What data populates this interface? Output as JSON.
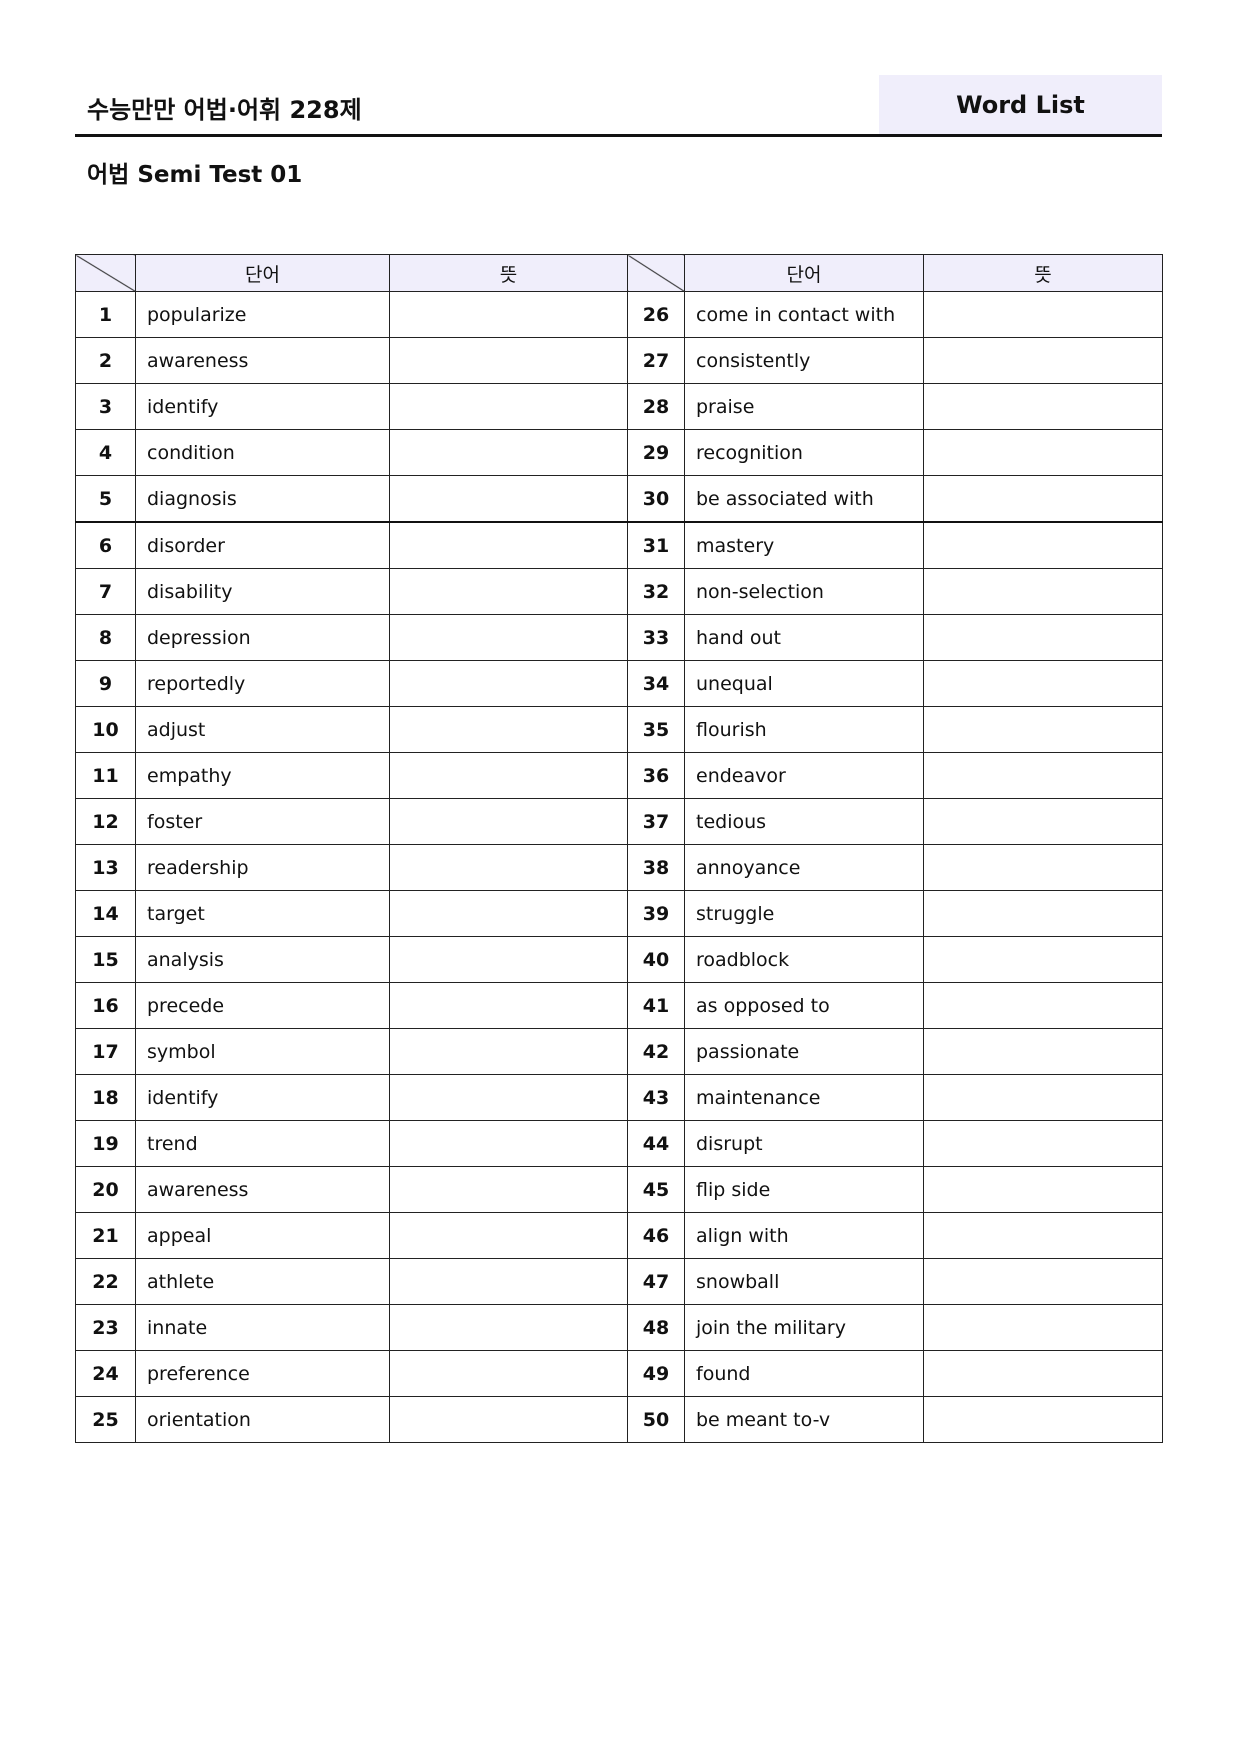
{
  "header": {
    "title": "수능만만 어법·어휘 228제",
    "badge": "Word List",
    "subtitle": "어법 Semi Test 01"
  },
  "table": {
    "col_word": "단어",
    "col_meaning": "뜻",
    "left": [
      {
        "n": "1",
        "w": "popularize"
      },
      {
        "n": "2",
        "w": "awareness"
      },
      {
        "n": "3",
        "w": "identify"
      },
      {
        "n": "4",
        "w": "condition"
      },
      {
        "n": "5",
        "w": "diagnosis"
      },
      {
        "n": "6",
        "w": "disorder"
      },
      {
        "n": "7",
        "w": "disability"
      },
      {
        "n": "8",
        "w": "depression"
      },
      {
        "n": "9",
        "w": "reportedly"
      },
      {
        "n": "10",
        "w": "adjust"
      },
      {
        "n": "11",
        "w": "empathy"
      },
      {
        "n": "12",
        "w": "foster"
      },
      {
        "n": "13",
        "w": "readership"
      },
      {
        "n": "14",
        "w": "target"
      },
      {
        "n": "15",
        "w": "analysis"
      },
      {
        "n": "16",
        "w": "precede"
      },
      {
        "n": "17",
        "w": "symbol"
      },
      {
        "n": "18",
        "w": "identify"
      },
      {
        "n": "19",
        "w": "trend"
      },
      {
        "n": "20",
        "w": "awareness"
      },
      {
        "n": "21",
        "w": "appeal"
      },
      {
        "n": "22",
        "w": "athlete"
      },
      {
        "n": "23",
        "w": "innate"
      },
      {
        "n": "24",
        "w": "preference"
      },
      {
        "n": "25",
        "w": "orientation"
      }
    ],
    "right": [
      {
        "n": "26",
        "w": "come in contact with"
      },
      {
        "n": "27",
        "w": "consistently"
      },
      {
        "n": "28",
        "w": "praise"
      },
      {
        "n": "29",
        "w": "recognition"
      },
      {
        "n": "30",
        "w": "be associated with"
      },
      {
        "n": "31",
        "w": "mastery"
      },
      {
        "n": "32",
        "w": "non-selection"
      },
      {
        "n": "33",
        "w": "hand out"
      },
      {
        "n": "34",
        "w": "unequal"
      },
      {
        "n": "35",
        "w": "flourish"
      },
      {
        "n": "36",
        "w": "endeavor"
      },
      {
        "n": "37",
        "w": "tedious"
      },
      {
        "n": "38",
        "w": "annoyance"
      },
      {
        "n": "39",
        "w": "struggle"
      },
      {
        "n": "40",
        "w": "roadblock"
      },
      {
        "n": "41",
        "w": "as opposed to"
      },
      {
        "n": "42",
        "w": "passionate"
      },
      {
        "n": "43",
        "w": "maintenance"
      },
      {
        "n": "44",
        "w": "disrupt"
      },
      {
        "n": "45",
        "w": "flip side"
      },
      {
        "n": "46",
        "w": "align with"
      },
      {
        "n": "47",
        "w": "snowball"
      },
      {
        "n": "48",
        "w": "join the military"
      },
      {
        "n": "49",
        "w": "found"
      },
      {
        "n": "50",
        "w": "be meant to-v"
      }
    ]
  }
}
